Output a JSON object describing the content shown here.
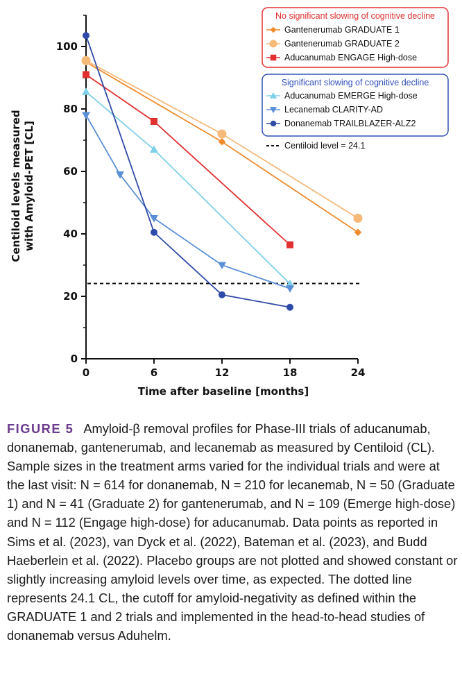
{
  "chart_data": {
    "type": "line",
    "xlabel": "Time after baseline [months]",
    "ylabel_line1": "Centiloid levels measured",
    "ylabel_line2": "with Amyloid-PET [CL]",
    "xlim": [
      0,
      24
    ],
    "ylim": [
      0,
      110
    ],
    "xticks": [
      0,
      6,
      12,
      18,
      24
    ],
    "yticks": [
      0,
      20,
      40,
      60,
      80,
      100
    ],
    "groups": [
      {
        "title": "No significant slowing of cognitive decline",
        "color": "#e03030",
        "series_indices": [
          0,
          1,
          2
        ]
      },
      {
        "title": "Significant slowing of cognitive decline",
        "color": "#3050b8",
        "series_indices": [
          3,
          4,
          5
        ]
      }
    ],
    "series": [
      {
        "name": "Gantenerumab GRADUATE 1",
        "color": "#f08a2a",
        "marker": "diamond",
        "x": [
          0,
          12,
          24
        ],
        "y": [
          95,
          69.5,
          40.5
        ]
      },
      {
        "name": "Gantenerumab GRADUATE 2",
        "color": "#f5b97a",
        "marker": "circle-large",
        "x": [
          0,
          12,
          24
        ],
        "y": [
          95.5,
          72,
          45
        ]
      },
      {
        "name": "Aducanumab ENGAGE High-dose",
        "color": "#e23030",
        "marker": "square",
        "x": [
          0,
          6,
          18
        ],
        "y": [
          91,
          76,
          36.5
        ]
      },
      {
        "name": "Aducanumab EMERGE High-dose",
        "color": "#7ecfe8",
        "marker": "triangle-up",
        "x": [
          0,
          6,
          18
        ],
        "y": [
          85.5,
          67,
          24
        ]
      },
      {
        "name": "Lecanemab CLARITY-AD",
        "color": "#5a8fd6",
        "marker": "triangle-down",
        "x": [
          0,
          3,
          6,
          12,
          18
        ],
        "y": [
          78,
          59,
          45,
          30,
          22.5
        ]
      },
      {
        "name": "Donanemab TRAILBLAZER-ALZ2",
        "color": "#2f4aa8",
        "marker": "circle",
        "x": [
          0,
          6,
          12,
          18
        ],
        "y": [
          103.5,
          40.5,
          20.5,
          16.5
        ]
      }
    ],
    "reference_line": {
      "value": 24.1,
      "label": "Centiloid level = 24.1",
      "style": "dashed"
    }
  },
  "caption": {
    "label": "FIGURE 5",
    "text": "Amyloid-β removal profiles for Phase-III trials of aducanumab, donanemab, gantenerumab, and lecanemab as measured by Centiloid (CL). Sample sizes in the treatment arms varied for the individual trials and were at the last visit: N = 614 for donanemab, N = 210 for lecanemab, N = 50 (Graduate 1) and N = 41 (Graduate 2) for gantenerumab, and N = 109 (Emerge high-dose) and N = 112 (Engage high-dose) for aducanumab. Data points as reported in Sims et al. (2023), van Dyck et al. (2022), Bateman et al. (2023), and Budd Haeberlein et al. (2022). Placebo groups are not plotted and showed constant or slightly increasing amyloid levels over time, as expected. The dotted line represents 24.1 CL, the cutoff for amyloid-negativity as defined within the GRADUATE 1 and 2 trials and implemented in the head-to-head studies of donanemab versus Aduhelm."
  }
}
